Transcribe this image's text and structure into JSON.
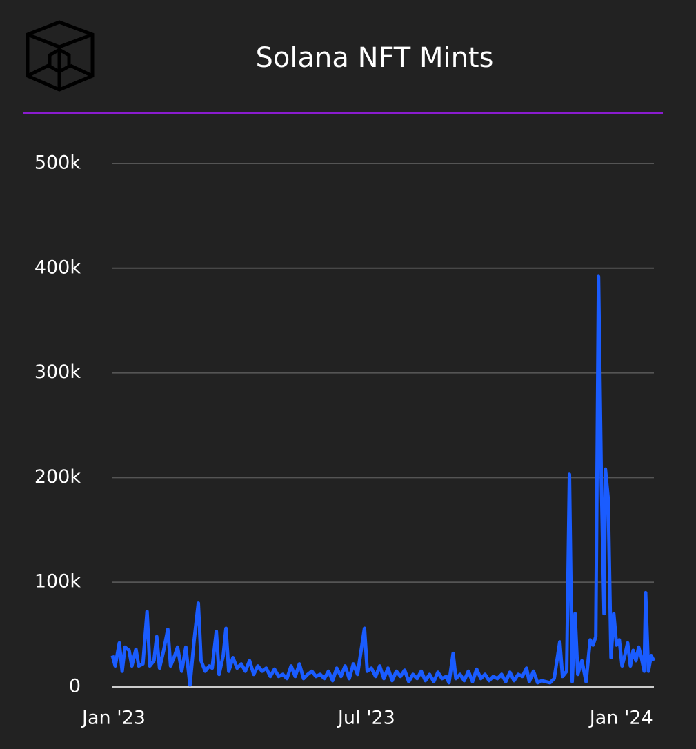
{
  "chart_data": {
    "type": "line",
    "title": "Solana NFT Mints",
    "x": [
      0,
      2,
      5,
      7,
      9,
      12,
      14,
      17,
      19,
      22,
      25,
      27,
      30,
      32,
      34,
      37,
      40,
      42,
      45,
      47,
      50,
      53,
      56,
      59,
      62,
      64,
      67,
      70,
      72,
      75,
      77,
      80,
      82,
      84,
      87,
      90,
      93,
      96,
      99,
      102,
      105,
      108,
      111,
      114,
      117,
      120,
      123,
      126,
      129,
      132,
      135,
      138,
      141,
      144,
      147,
      150,
      153,
      156,
      159,
      162,
      165,
      168,
      171,
      174,
      177,
      179,
      182,
      184,
      187,
      190,
      193,
      196,
      199,
      202,
      205,
      208,
      211,
      214,
      217,
      220,
      223,
      226,
      229,
      232,
      235,
      238,
      241,
      243,
      246,
      248,
      251,
      254,
      257,
      260,
      263,
      266,
      269,
      272,
      275,
      278,
      281,
      284,
      287,
      290,
      293,
      296,
      299,
      301,
      304,
      307,
      310,
      313,
      316,
      319,
      323,
      325,
      328,
      330,
      332,
      334,
      336,
      339,
      342,
      345,
      347,
      349,
      351,
      353,
      355,
      356,
      358,
      360,
      362,
      364,
      366,
      368,
      370,
      372,
      374,
      376,
      378,
      380,
      382,
      384,
      385,
      387,
      389,
      391
    ],
    "series": [
      {
        "name": "Solana NFT Mints",
        "color": "#1a5cff",
        "values": [
          30000,
          20000,
          42000,
          15000,
          38000,
          35000,
          20000,
          36000,
          20000,
          22000,
          72000,
          20000,
          25000,
          48000,
          18000,
          35000,
          55000,
          20000,
          30000,
          38000,
          15000,
          38000,
          2000,
          45000,
          80000,
          25000,
          15000,
          20000,
          18000,
          53000,
          12000,
          30000,
          56000,
          15000,
          28000,
          18000,
          22000,
          15000,
          25000,
          12000,
          20000,
          15000,
          18000,
          10000,
          17000,
          10000,
          12000,
          8000,
          20000,
          10000,
          22000,
          8000,
          12000,
          15000,
          10000,
          12000,
          8000,
          15000,
          6000,
          18000,
          10000,
          20000,
          8000,
          22000,
          12000,
          30000,
          56000,
          15000,
          18000,
          10000,
          20000,
          8000,
          18000,
          6000,
          15000,
          10000,
          16000,
          5000,
          12000,
          8000,
          15000,
          6000,
          12000,
          5000,
          14000,
          8000,
          10000,
          4000,
          32000,
          8000,
          12000,
          6000,
          15000,
          5000,
          17000,
          8000,
          12000,
          6000,
          10000,
          8000,
          12000,
          5000,
          14000,
          6000,
          12000,
          10000,
          18000,
          5000,
          15000,
          4000,
          6000,
          5000,
          4000,
          8000,
          43000,
          10000,
          15000,
          203000,
          5000,
          70000,
          12000,
          25000,
          5000,
          45000,
          40000,
          48000,
          392000,
          200000,
          70000,
          208000,
          180000,
          28000,
          70000,
          40000,
          45000,
          20000,
          30000,
          42000,
          20000,
          35000,
          25000,
          38000,
          28000,
          15000,
          90000,
          15000,
          30000,
          25000
        ]
      }
    ],
    "xlim": [
      0,
      391
    ],
    "xticks": [
      {
        "value": 0,
        "label": "Jan '23"
      },
      {
        "value": 181,
        "label": "Jul '23"
      },
      {
        "value": 365,
        "label": "Jan '24"
      }
    ],
    "ylim": [
      0,
      500000
    ],
    "yticks": [
      {
        "value": 0,
        "label": "0"
      },
      {
        "value": 100000,
        "label": "100k"
      },
      {
        "value": 200000,
        "label": "200k"
      },
      {
        "value": 300000,
        "label": "300k"
      },
      {
        "value": 400000,
        "label": "400k"
      },
      {
        "value": 500000,
        "label": "500k"
      }
    ],
    "grid": true
  }
}
